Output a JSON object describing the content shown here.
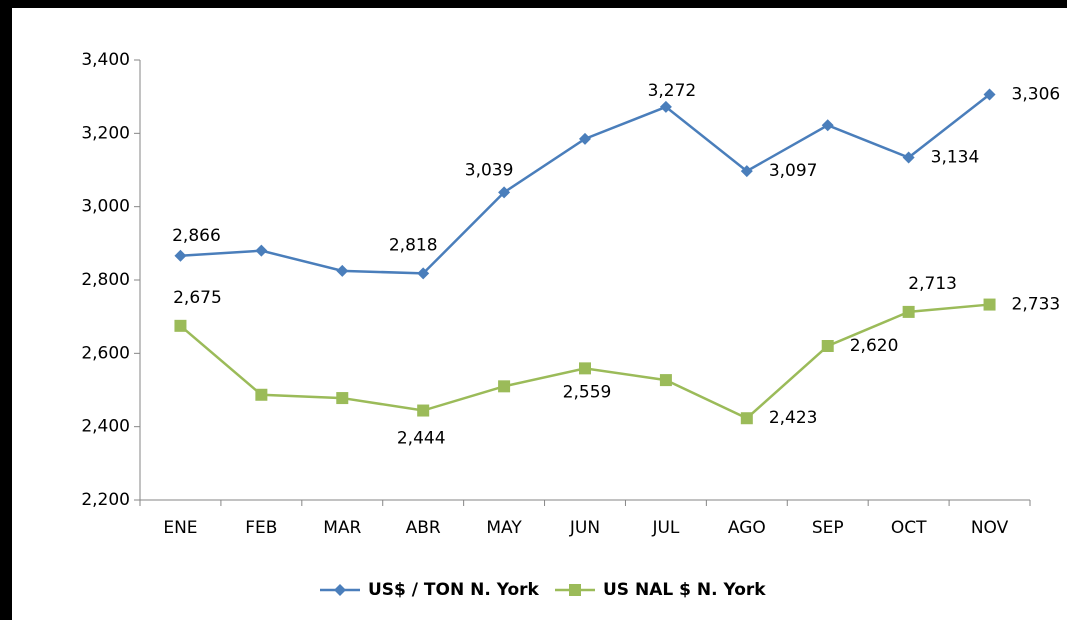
{
  "chart_data": {
    "type": "line",
    "categories": [
      "ENE",
      "FEB",
      "MAR",
      "ABR",
      "MAY",
      "JUN",
      "JUL",
      "AGO",
      "SEP",
      "OCT",
      "NOV"
    ],
    "series": [
      {
        "name": "US$ / TON N. York",
        "color": "#4a7ebb",
        "marker": "diamond",
        "values": [
          2866,
          2880,
          2825,
          2818,
          3039,
          3185,
          3272,
          3097,
          3222,
          3134,
          3306
        ],
        "value_labels": [
          "2,866",
          null,
          null,
          "2,818",
          "3,039",
          null,
          "3,272",
          "3,097",
          null,
          "3,134",
          "3,306"
        ]
      },
      {
        "name": "US NAL $ N. York",
        "color": "#9bbb59",
        "marker": "square",
        "values": [
          2675,
          2487,
          2478,
          2444,
          2510,
          2559,
          2527,
          2423,
          2620,
          2713,
          2733
        ],
        "value_labels": [
          "2,675",
          null,
          null,
          "2,444",
          null,
          "2,559",
          null,
          "2,423",
          "2,620",
          "2,713",
          "2,733"
        ]
      }
    ],
    "ylim": [
      2200,
      3400
    ],
    "yticks": [
      {
        "value": 2200,
        "label": "2,200"
      },
      {
        "value": 2400,
        "label": "2,400"
      },
      {
        "value": 2600,
        "label": "2,600"
      },
      {
        "value": 2800,
        "label": "2,800"
      },
      {
        "value": 3000,
        "label": "3,000"
      },
      {
        "value": 3200,
        "label": "3,200"
      },
      {
        "value": 3400,
        "label": "3,400"
      }
    ],
    "grid": false,
    "legend": "bottom"
  }
}
